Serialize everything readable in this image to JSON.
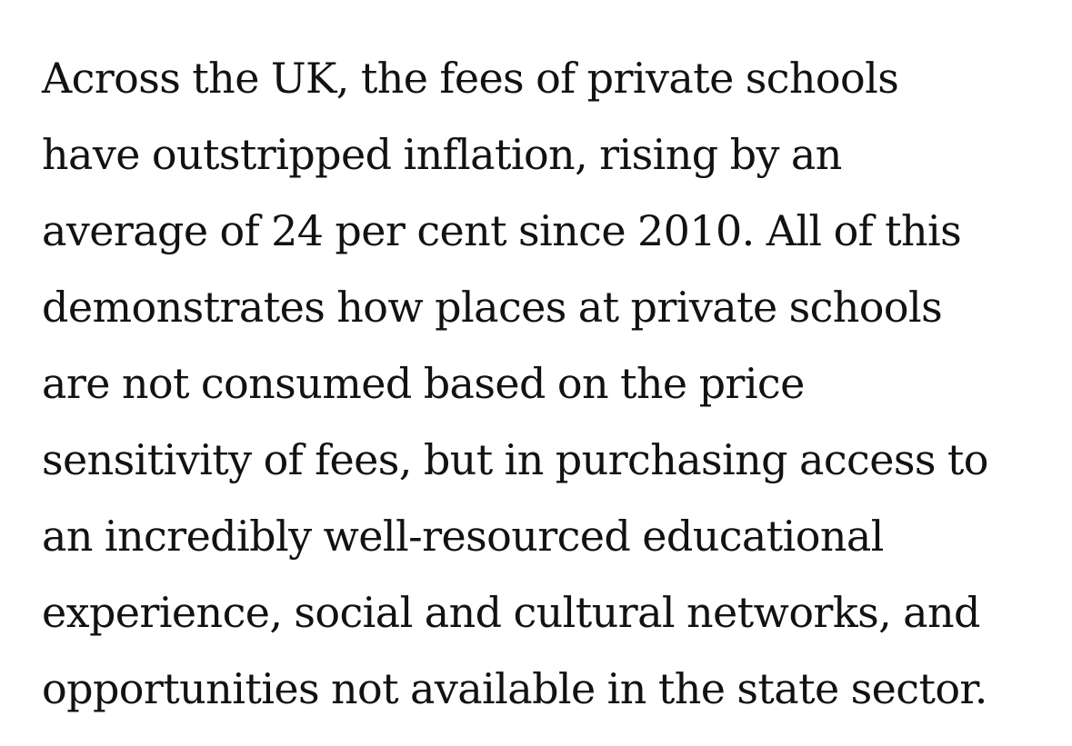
{
  "article": {
    "paragraph_lines": [
      "Across the UK, the fees of private schools",
      "have outstripped inflation, rising by an",
      "average of 24 per cent since 2010. All of this",
      "demonstrates how places at private schools",
      "are not consumed based on the price",
      "sensitivity of fees, but in purchasing access to",
      "an incredibly well-resourced educational",
      "experience, social and cultural networks, and",
      "opportunities not available in the state sector."
    ]
  }
}
